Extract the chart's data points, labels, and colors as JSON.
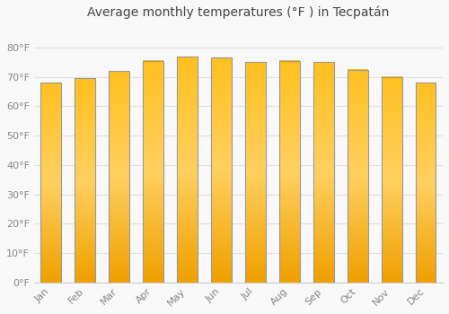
{
  "title": "Average monthly temperatures (°F ) in Tecpatán",
  "months": [
    "Jan",
    "Feb",
    "Mar",
    "Apr",
    "May",
    "Jun",
    "Jul",
    "Aug",
    "Sep",
    "Oct",
    "Nov",
    "Dec"
  ],
  "values": [
    68,
    69.5,
    72,
    75.5,
    77,
    76.5,
    75,
    75.5,
    75,
    72.5,
    70,
    68
  ],
  "bar_color_top": "#FFB300",
  "bar_color_bottom": "#FF8C00",
  "bar_edge_color": "#999999",
  "background_color": "#f8f8f8",
  "grid_color": "#e0e0e0",
  "ylim": [
    0,
    88
  ],
  "yticks": [
    0,
    10,
    20,
    30,
    40,
    50,
    60,
    70,
    80
  ],
  "ylabel_suffix": "°F",
  "title_fontsize": 10,
  "tick_fontsize": 8,
  "tick_color": "#888888",
  "title_color": "#444444",
  "figsize": [
    5.0,
    3.5
  ],
  "dpi": 100,
  "bar_width": 0.6
}
